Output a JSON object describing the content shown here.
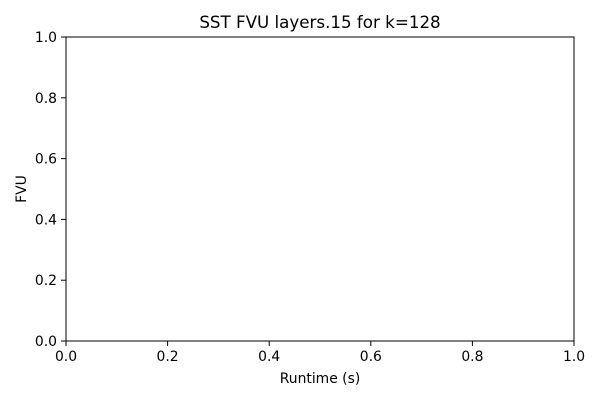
{
  "chart_data": {
    "type": "line",
    "title": "SST FVU layers.15 for k=128",
    "xlabel": "Runtime (s)",
    "ylabel": "FVU",
    "xlim": [
      0.0,
      1.0
    ],
    "ylim": [
      0.0,
      1.0
    ],
    "xticks": [
      0.0,
      0.2,
      0.4,
      0.6,
      0.8,
      1.0
    ],
    "yticks": [
      0.0,
      0.2,
      0.4,
      0.6,
      0.8,
      1.0
    ],
    "xtick_labels": [
      "0.0",
      "0.2",
      "0.4",
      "0.6",
      "0.8",
      "1.0"
    ],
    "ytick_labels": [
      "0.0",
      "0.2",
      "0.4",
      "0.6",
      "0.8",
      "1.0"
    ],
    "grid": false,
    "series": []
  }
}
